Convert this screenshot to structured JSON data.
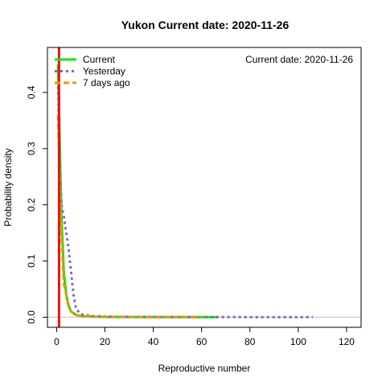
{
  "chart_data": {
    "type": "line",
    "title": "Yukon   Current date:  2020-11-26",
    "annotation": "Current date:  2020-11-26",
    "xlabel": "Reproductive number",
    "ylabel": "Probability density",
    "xlim": [
      -3.8,
      126
    ],
    "ylim": [
      -0.018,
      0.48
    ],
    "x_ticks": [
      0,
      20,
      40,
      60,
      80,
      100,
      120
    ],
    "y_ticks": [
      0.0,
      0.1,
      0.2,
      0.3,
      0.4
    ],
    "y_tick_labels": [
      "0.0",
      "0.1",
      "0.2",
      "0.3",
      "0.4"
    ],
    "grid": false,
    "legend_position": "top-left",
    "reference_line": {
      "orientation": "vertical",
      "x": 1,
      "color": "#ee1111"
    },
    "baseline": {
      "orientation": "horizontal",
      "y": 0,
      "color": "#bebebe"
    },
    "series": [
      {
        "name": "Current",
        "color": "#00ee00",
        "style": "solid",
        "x": [
          0.6,
          1,
          1.5,
          2,
          3,
          4,
          5,
          6,
          8,
          10,
          15,
          20,
          40,
          67
        ],
        "y": [
          0.45,
          0.37,
          0.27,
          0.18,
          0.08,
          0.04,
          0.02,
          0.01,
          0.004,
          0.002,
          0.001,
          0.0005,
          0.0002,
          0.0
        ]
      },
      {
        "name": "Yesterday",
        "color": "#7b68c8",
        "style": "dotted",
        "x": [
          0.6,
          1,
          1.5,
          2,
          3,
          4,
          5,
          6,
          7,
          8,
          10,
          15,
          20,
          40,
          106
        ],
        "y": [
          0.41,
          0.33,
          0.25,
          0.2,
          0.18,
          0.15,
          0.12,
          0.08,
          0.04,
          0.015,
          0.005,
          0.002,
          0.001,
          0.0003,
          0.0
        ]
      },
      {
        "name": "7 days ago",
        "color": "#ff8c00",
        "style": "dashed",
        "x": [
          0.6,
          1,
          1.5,
          2,
          3,
          4,
          5,
          6,
          8,
          10,
          15,
          20,
          40,
          60
        ],
        "y": [
          0.36,
          0.29,
          0.22,
          0.15,
          0.06,
          0.04,
          0.02,
          0.01,
          0.004,
          0.002,
          0.001,
          0.0005,
          0.0002,
          0.0
        ]
      }
    ]
  }
}
